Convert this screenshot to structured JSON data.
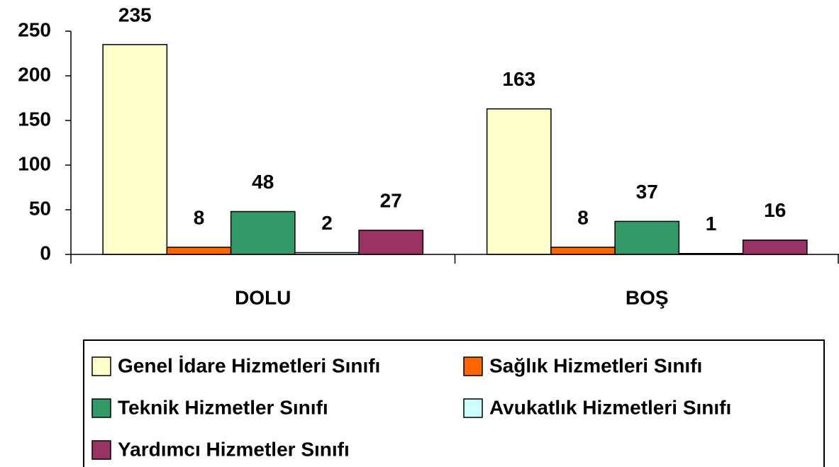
{
  "chart_data": {
    "type": "bar",
    "categories": [
      "DOLU",
      "BOŞ"
    ],
    "series": [
      {
        "name": "Genel İdare Hizmetleri Sınıfı",
        "color": "#ffffcc",
        "values": [
          235,
          163
        ]
      },
      {
        "name": "Sağlık Hizmetleri Sınıfı",
        "color": "#ff6600",
        "values": [
          8,
          8
        ]
      },
      {
        "name": "Teknik Hizmetler Sınıfı",
        "color": "#339966",
        "values": [
          48,
          37
        ]
      },
      {
        "name": "Avukatlık Hizmetleri Sınıfı",
        "color": "#ccffff",
        "values": [
          2,
          1
        ]
      },
      {
        "name": "Yardımcı Hizmetler Sınıfı",
        "color": "#993366",
        "values": [
          27,
          16
        ]
      }
    ],
    "ylim": [
      0,
      250
    ],
    "yticks": [
      0,
      50,
      100,
      150,
      200,
      250
    ],
    "grid": false,
    "legend": "bottom"
  }
}
